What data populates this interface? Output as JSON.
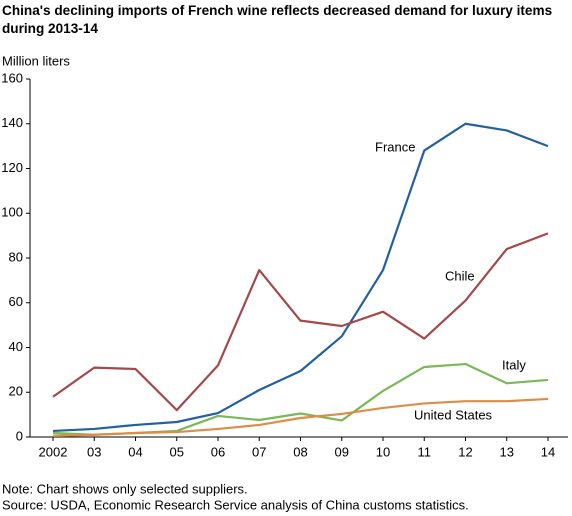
{
  "chart_data": {
    "type": "line",
    "title": "China's declining imports of French wine reflects decreased demand for luxury items during 2013-14",
    "y_label": "Million liters",
    "categories": [
      "2002",
      "03",
      "04",
      "05",
      "06",
      "07",
      "08",
      "09",
      "10",
      "11",
      "12",
      "13",
      "14"
    ],
    "series": [
      {
        "name": "France",
        "color": "#22609f",
        "values": [
          2.7,
          3.6,
          5.4,
          6.7,
          10.7,
          21,
          29.5,
          45,
          74.6,
          128,
          140,
          137,
          130
        ]
      },
      {
        "name": "Chile",
        "color": "#a3494a",
        "values": [
          18,
          31,
          30.4,
          12,
          32,
          74.6,
          52,
          49.6,
          56,
          44,
          61,
          84,
          91
        ]
      },
      {
        "name": "Italy",
        "color": "#79b956",
        "values": [
          1.8,
          1,
          1.8,
          2.7,
          9.4,
          7.6,
          10.5,
          7.4,
          20.6,
          31.3,
          32.6,
          24,
          25.5
        ]
      },
      {
        "name": "United States",
        "color": "#de8c48",
        "values": [
          0.5,
          1,
          1.8,
          2.2,
          3.6,
          5.4,
          8.5,
          10.3,
          13,
          15,
          16,
          16,
          17
        ]
      }
    ],
    "ylim": [
      0,
      160
    ],
    "yticks": [
      0,
      20,
      40,
      60,
      80,
      100,
      120,
      140,
      160
    ],
    "grid": false,
    "notes": [
      "Note: Chart shows only selected suppliers.",
      "Source: USDA, Economic Research Service analysis of China customs statistics."
    ]
  }
}
